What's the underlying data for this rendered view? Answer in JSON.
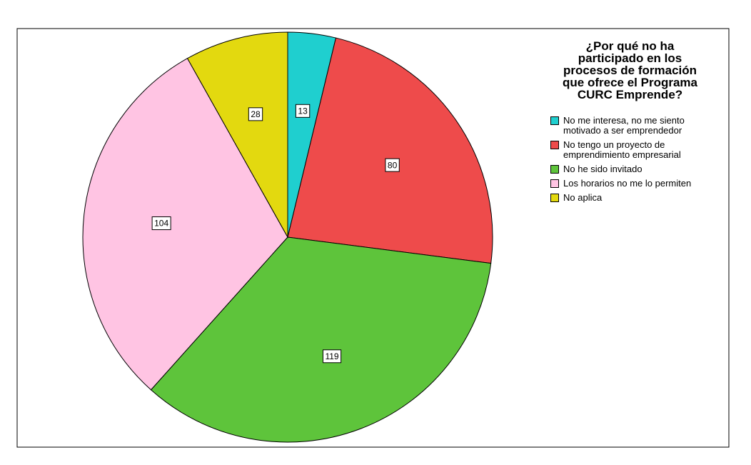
{
  "chart_data": {
    "type": "pie",
    "title": "¿Por qué no ha participado en los procesos de formación que ofrece el Programa CURC Emprende?",
    "categories": [
      "No me interesa, no me siento motivado a ser emprendedor",
      "No tengo un proyecto de emprendimiento empresarial",
      "No he sido invitado",
      "Los horarios no me lo permiten",
      "No aplica"
    ],
    "values": [
      13,
      80,
      119,
      104,
      28
    ],
    "colors": [
      "#1fcfcf",
      "#ee4b4b",
      "#5ec43b",
      "#ffc4e3",
      "#e3d90f"
    ]
  }
}
